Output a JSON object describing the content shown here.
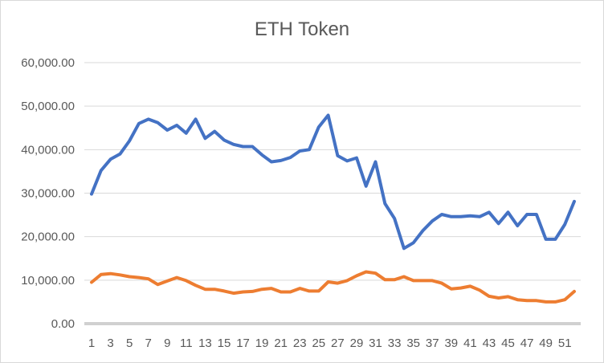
{
  "chart_data": {
    "type": "line",
    "title": "ETH Token",
    "xlabel": "",
    "ylabel": "",
    "ylim": [
      0,
      60000
    ],
    "y_ticks": [
      "0.00",
      "10,000.00",
      "20,000.00",
      "30,000.00",
      "40,000.00",
      "50,000.00",
      "60,000.00"
    ],
    "x": [
      1,
      2,
      3,
      4,
      5,
      6,
      7,
      8,
      9,
      10,
      11,
      12,
      13,
      14,
      15,
      16,
      17,
      18,
      19,
      20,
      21,
      22,
      23,
      24,
      25,
      26,
      27,
      28,
      29,
      30,
      31,
      32,
      33,
      34,
      35,
      36,
      37,
      38,
      39,
      40,
      41,
      42,
      43,
      44,
      45,
      46,
      47,
      48,
      49,
      50,
      51,
      52
    ],
    "x_tick_labels": [
      "1",
      "3",
      "5",
      "7",
      "9",
      "11",
      "13",
      "15",
      "17",
      "19",
      "21",
      "23",
      "25",
      "27",
      "29",
      "31",
      "33",
      "35",
      "37",
      "39",
      "41",
      "43",
      "45",
      "47",
      "49",
      "51"
    ],
    "grid": true,
    "legend": "none",
    "series": [
      {
        "color": "#4472c4",
        "values": [
          29800,
          35200,
          37800,
          39000,
          42000,
          46000,
          47000,
          46200,
          44500,
          45600,
          43800,
          47000,
          42600,
          44200,
          42200,
          41200,
          40700,
          40700,
          38800,
          37200,
          37500,
          38200,
          39700,
          40000,
          45200,
          47900,
          38600,
          37400,
          38100,
          31600,
          37200,
          27600,
          24200,
          17300,
          18600,
          21400,
          23600,
          25100,
          24600,
          24600,
          24800,
          24600,
          25600,
          23000,
          25600,
          22500,
          25100,
          25100,
          19400,
          19400,
          22800,
          28100
        ]
      },
      {
        "color": "#ed7d31",
        "values": [
          9500,
          11300,
          11500,
          11200,
          10800,
          10600,
          10300,
          9000,
          9800,
          10600,
          9900,
          8800,
          7900,
          7900,
          7500,
          7000,
          7300,
          7400,
          7900,
          8100,
          7300,
          7300,
          8100,
          7500,
          7500,
          9600,
          9300,
          9900,
          11000,
          11900,
          11600,
          10100,
          10100,
          10800,
          9900,
          9900,
          9900,
          9300,
          8000,
          8200,
          8600,
          7700,
          6300,
          5900,
          6200,
          5500,
          5300,
          5300,
          5000,
          5000,
          5500,
          7400
        ]
      }
    ]
  }
}
